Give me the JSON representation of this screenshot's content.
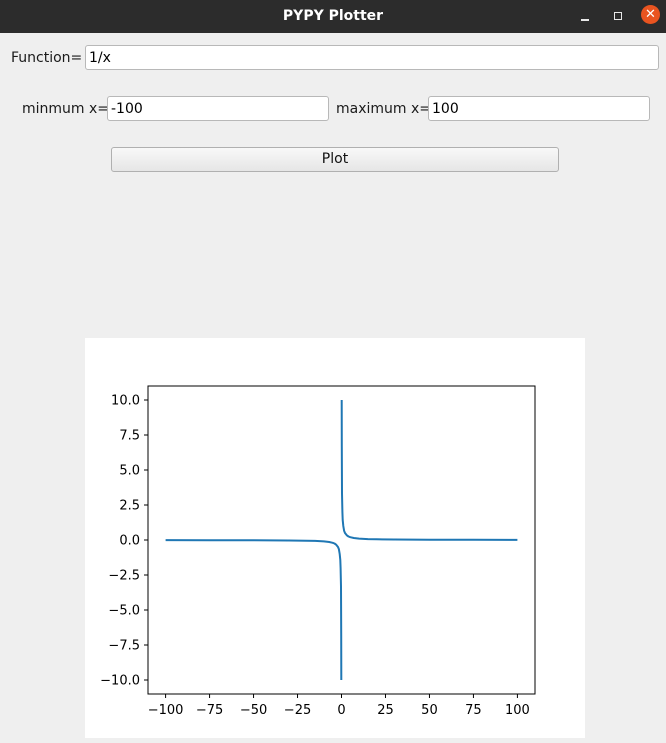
{
  "window": {
    "title": "PYPY Plotter",
    "close_glyph": "✕"
  },
  "function_row": {
    "label": "Function=",
    "value": "1/x"
  },
  "range_row": {
    "min_label": "minmum x=",
    "min_value": "-100",
    "max_label": "maximum x=",
    "max_value": "100"
  },
  "plot_button": {
    "label": "Plot"
  },
  "chart_data": {
    "type": "line",
    "title": "",
    "xlabel": "",
    "ylabel": "",
    "xlim": [
      -110,
      110
    ],
    "ylim": [
      -11,
      11
    ],
    "grid": false,
    "line_color": "#1f77b4",
    "x_ticks": [
      -100,
      -75,
      -50,
      -25,
      0,
      25,
      50,
      75,
      100
    ],
    "x_tick_labels": [
      "−100",
      "−75",
      "−50",
      "−25",
      "0",
      "25",
      "50",
      "75",
      "100"
    ],
    "y_ticks": [
      10.0,
      7.5,
      5.0,
      2.5,
      0.0,
      -2.5,
      -5.0,
      -7.5,
      -10.0
    ],
    "y_tick_labels": [
      "10.0",
      "7.5",
      "5.0",
      "2.5",
      "0.0",
      "−2.5",
      "−5.0",
      "−7.5",
      "−10.0"
    ],
    "series": [
      {
        "x": [
          -100,
          -75,
          -50,
          -30,
          -20,
          -15,
          -10,
          -7,
          -5,
          -4,
          -3,
          -2,
          -1.5,
          -1,
          -0.7,
          -0.5,
          -0.3,
          -0.2,
          -0.15,
          -0.1,
          null,
          0.1,
          0.15,
          0.2,
          0.3,
          0.5,
          0.7,
          1,
          1.5,
          2,
          3,
          4,
          5,
          7,
          10,
          15,
          20,
          30,
          50,
          75,
          100
        ],
        "y": [
          -0.01,
          -0.0133,
          -0.02,
          -0.0333,
          -0.05,
          -0.0667,
          -0.1,
          -0.143,
          -0.2,
          -0.25,
          -0.333,
          -0.5,
          -0.667,
          -1,
          -1.43,
          -2,
          -3.33,
          -5,
          -6.67,
          -10,
          null,
          10,
          6.67,
          5,
          3.33,
          2,
          1.43,
          1,
          0.667,
          0.5,
          0.333,
          0.25,
          0.2,
          0.143,
          0.1,
          0.0667,
          0.05,
          0.0333,
          0.02,
          0.0133,
          0.01
        ]
      }
    ]
  }
}
